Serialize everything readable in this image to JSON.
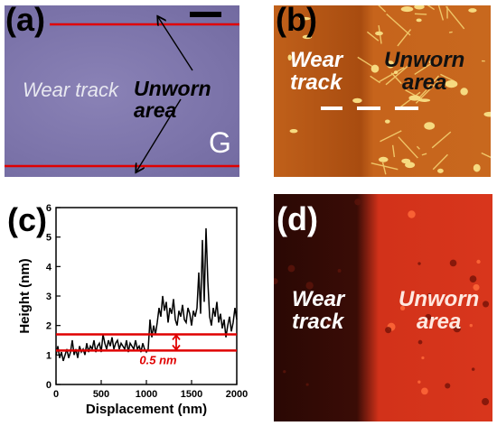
{
  "panels": {
    "a": {
      "label": "(a)",
      "wear": "Wear track",
      "unworn": "Unworn area",
      "sample": "G"
    },
    "b": {
      "label": "(b)",
      "wear": "Wear\ntrack",
      "unworn": "Unworn\narea"
    },
    "c": {
      "label": "(c)",
      "gap": "0.5 nm"
    },
    "d": {
      "label": "(d)",
      "wear": "Wear\ntrack",
      "unworn": "Unworn\narea"
    }
  },
  "colors": {
    "line_red": "#e00000",
    "profile": "#000000"
  },
  "chart_data": {
    "type": "line",
    "xlabel": "Displacement (nm)",
    "ylabel": "Height (nm)",
    "xlim": [
      0,
      2000
    ],
    "ylim": [
      0,
      6
    ],
    "xticks": [
      0,
      500,
      1000,
      1500,
      2000
    ],
    "yticks": [
      0,
      1,
      2,
      3,
      4,
      5,
      6
    ],
    "hlines": [
      1.7,
      1.15
    ],
    "annotation": "0.5 nm",
    "series": [
      {
        "x": [
          0,
          20,
          40,
          60,
          80,
          100,
          120,
          140,
          160,
          180,
          200,
          220,
          240,
          260,
          280,
          300,
          320,
          340,
          360,
          380,
          400,
          420,
          440,
          460,
          480,
          500,
          520,
          540,
          560,
          580,
          600,
          620,
          640,
          660,
          680,
          700,
          720,
          740,
          760,
          780,
          800,
          820,
          840,
          860,
          880,
          900,
          920,
          940,
          960,
          980,
          1000,
          1020,
          1040,
          1060,
          1080,
          1100,
          1120,
          1140,
          1160,
          1180,
          1200,
          1220,
          1240,
          1260,
          1280,
          1300,
          1320,
          1340,
          1360,
          1380,
          1400,
          1420,
          1440,
          1460,
          1480,
          1500,
          1520,
          1540,
          1560,
          1580,
          1600,
          1620,
          1640,
          1660,
          1680,
          1700,
          1720,
          1740,
          1760,
          1780,
          1800,
          1820,
          1840,
          1860,
          1880,
          1900,
          1920,
          1940,
          1960,
          1980,
          2000
        ],
        "y": [
          1.0,
          1.3,
          0.9,
          1.1,
          0.8,
          1.0,
          1.2,
          0.9,
          1.1,
          1.5,
          1.0,
          1.2,
          0.9,
          1.3,
          1.1,
          1.2,
          1.0,
          1.4,
          1.1,
          1.3,
          1.2,
          1.5,
          1.1,
          1.3,
          1.4,
          1.1,
          1.7,
          1.4,
          1.2,
          1.5,
          1.3,
          1.6,
          1.2,
          1.4,
          1.5,
          1.2,
          1.4,
          1.3,
          1.2,
          1.5,
          1.1,
          1.4,
          1.3,
          1.2,
          1.5,
          1.2,
          1.3,
          1.1,
          1.4,
          1.2,
          1.1,
          1.2,
          2.2,
          1.6,
          2.0,
          1.7,
          2.1,
          2.6,
          2.3,
          3.0,
          2.5,
          2.8,
          2.1,
          2.6,
          2.4,
          2.9,
          2.2,
          2.0,
          2.5,
          2.3,
          2.7,
          2.2,
          2.1,
          2.6,
          2.4,
          2.0,
          2.5,
          2.3,
          2.6,
          3.8,
          2.4,
          4.9,
          2.8,
          5.3,
          3.5,
          2.3,
          2.0,
          2.6,
          2.3,
          2.8,
          2.1,
          2.4,
          1.9,
          2.2,
          1.6,
          2.0,
          2.3,
          1.8,
          2.1,
          2.6,
          2.2
        ]
      }
    ]
  }
}
